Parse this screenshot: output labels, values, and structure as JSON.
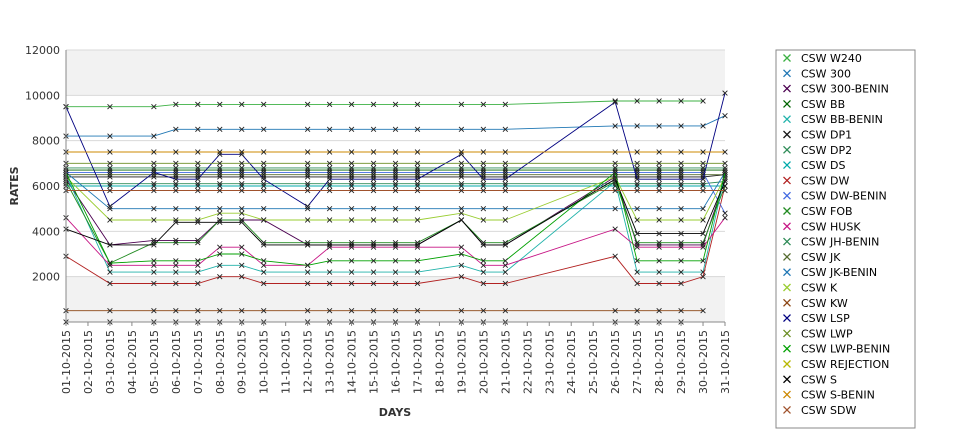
{
  "chart_data": {
    "type": "line",
    "xlabel": "DAYS",
    "ylabel": "RATES",
    "ylim": [
      0,
      12000
    ],
    "yticks": [
      2000,
      4000,
      6000,
      8000,
      10000,
      12000
    ],
    "grid": true,
    "legend_position": "right",
    "categories": [
      "01-10-2015",
      "02-10-2015",
      "03-10-2015",
      "04-10-2015",
      "05-10-2015",
      "06-10-2015",
      "07-10-2015",
      "08-10-2015",
      "09-10-2015",
      "10-10-2015",
      "11-10-2015",
      "12-10-2015",
      "13-10-2015",
      "14-10-2015",
      "15-10-2015",
      "16-10-2015",
      "17-10-2015",
      "18-10-2015",
      "19-10-2015",
      "20-10-2015",
      "21-10-2015",
      "22-10-2015",
      "23-10-2015",
      "24-10-2015",
      "25-10-2015",
      "26-10-2015",
      "27-10-2015",
      "28-10-2015",
      "29-10-2015",
      "30-10-2015",
      "31-10-2015"
    ],
    "series": [
      {
        "name": "CSW  W240",
        "color": "#3cb043",
        "values": [
          9500,
          null,
          9500,
          null,
          9500,
          9600,
          9600,
          9600,
          9600,
          9600,
          null,
          9600,
          9600,
          9600,
          9600,
          9600,
          9600,
          null,
          9600,
          9600,
          9600,
          null,
          null,
          null,
          null,
          9750,
          9750,
          9750,
          9750,
          9750,
          null
        ]
      },
      {
        "name": "CSW 300",
        "color": "#1f77b4",
        "values": [
          8200,
          null,
          8200,
          null,
          8200,
          8500,
          8500,
          8500,
          8500,
          8500,
          null,
          8500,
          8500,
          8500,
          8500,
          8500,
          8500,
          null,
          8500,
          8500,
          8500,
          null,
          null,
          null,
          null,
          8650,
          8650,
          8650,
          8650,
          8650,
          9100
        ]
      },
      {
        "name": "CSW 300-BENIN",
        "color": "#4b0050",
        "values": [
          6300,
          null,
          3400,
          null,
          3600,
          3600,
          3600,
          4500,
          4500,
          4500,
          null,
          3400,
          3400,
          3400,
          3400,
          3400,
          3400,
          null,
          4500,
          3400,
          3400,
          null,
          null,
          null,
          null,
          6400,
          3400,
          3400,
          3400,
          3400,
          6300
        ]
      },
      {
        "name": "CSW BB",
        "color": "#006400",
        "values": [
          6700,
          null,
          6700,
          null,
          6700,
          6700,
          6700,
          6700,
          6700,
          6700,
          null,
          6700,
          6700,
          6700,
          6700,
          6700,
          6700,
          null,
          6700,
          6700,
          6700,
          null,
          null,
          null,
          null,
          6700,
          6700,
          6700,
          6700,
          6700,
          6700
        ]
      },
      {
        "name": "CSW BB-BENIN",
        "color": "#20b2aa",
        "values": [
          6500,
          null,
          2200,
          null,
          2200,
          2200,
          2200,
          2500,
          2500,
          2200,
          null,
          2200,
          2200,
          2200,
          2200,
          2200,
          2200,
          null,
          2500,
          2200,
          2200,
          null,
          null,
          null,
          null,
          6200,
          2200,
          2200,
          2200,
          2200,
          6500
        ]
      },
      {
        "name": "CSW DP1",
        "color": "#1a1a1a",
        "values": [
          6400,
          null,
          6400,
          null,
          6400,
          6400,
          6400,
          6400,
          6400,
          6400,
          null,
          6400,
          6400,
          6400,
          6400,
          6400,
          6400,
          null,
          6400,
          6400,
          6400,
          null,
          null,
          null,
          null,
          6400,
          6400,
          6400,
          6400,
          6400,
          6500
        ]
      },
      {
        "name": "CSW DP2",
        "color": "#2e8b57",
        "values": [
          6100,
          null,
          6100,
          null,
          6100,
          6100,
          6100,
          6100,
          6100,
          6100,
          null,
          6100,
          6100,
          6100,
          6100,
          6100,
          6100,
          null,
          6100,
          6100,
          6100,
          null,
          null,
          null,
          null,
          6100,
          6100,
          6100,
          6100,
          6100,
          6200
        ]
      },
      {
        "name": "CSW DS",
        "color": "#00aaaa",
        "values": [
          6000,
          null,
          6000,
          null,
          6000,
          6000,
          6000,
          6000,
          6000,
          6000,
          null,
          6000,
          6000,
          6000,
          6000,
          6000,
          6000,
          null,
          6000,
          6000,
          6000,
          null,
          null,
          null,
          null,
          6000,
          6000,
          6000,
          6000,
          6000,
          6000
        ]
      },
      {
        "name": "CSW DW",
        "color": "#b22222",
        "values": [
          2900,
          null,
          1700,
          null,
          1700,
          1700,
          1700,
          2000,
          2000,
          1700,
          null,
          1700,
          1700,
          1700,
          1700,
          1700,
          1700,
          null,
          2000,
          1700,
          1700,
          null,
          null,
          null,
          null,
          2900,
          1700,
          1700,
          1700,
          2000,
          6000
        ]
      },
      {
        "name": "CSW DW-BENIN",
        "color": "#4169e1",
        "values": [
          6600,
          null,
          6600,
          null,
          6600,
          6600,
          6600,
          6600,
          6600,
          6600,
          null,
          6600,
          6600,
          6600,
          6600,
          6600,
          6600,
          null,
          6600,
          6600,
          6600,
          null,
          null,
          null,
          null,
          6600,
          6600,
          6600,
          6600,
          6600,
          4800
        ]
      },
      {
        "name": "CSW FOB",
        "color": "#228b22",
        "values": [
          6200,
          null,
          2600,
          null,
          3500,
          3500,
          3500,
          4500,
          4500,
          3500,
          null,
          3500,
          3500,
          3500,
          3500,
          3500,
          3500,
          null,
          4500,
          3500,
          3500,
          null,
          null,
          null,
          null,
          6200,
          3500,
          3500,
          3500,
          3500,
          6000
        ]
      },
      {
        "name": "CSW HUSK",
        "color": "#c71585",
        "values": [
          4600,
          null,
          2500,
          null,
          2500,
          2500,
          2500,
          3300,
          3300,
          2500,
          null,
          2500,
          3300,
          3300,
          3300,
          3300,
          3300,
          null,
          3300,
          2500,
          2500,
          null,
          null,
          null,
          null,
          4100,
          3300,
          3300,
          3300,
          3300,
          4600
        ]
      },
      {
        "name": "CSW JH-BENIN",
        "color": "#2e8b57",
        "values": [
          6800,
          null,
          6800,
          null,
          6800,
          6800,
          6800,
          6800,
          6800,
          6800,
          null,
          6800,
          6800,
          6800,
          6800,
          6800,
          6800,
          null,
          6800,
          6800,
          6800,
          null,
          null,
          null,
          null,
          6800,
          6800,
          6800,
          6800,
          6800,
          6800
        ]
      },
      {
        "name": "CSW JK",
        "color": "#556b2f",
        "values": [
          6500,
          null,
          6500,
          null,
          6500,
          6500,
          6500,
          6500,
          6500,
          6500,
          null,
          6500,
          6500,
          6500,
          6500,
          6500,
          6500,
          null,
          6500,
          6500,
          6500,
          null,
          null,
          null,
          null,
          6500,
          6500,
          6500,
          6500,
          6500,
          6500
        ]
      },
      {
        "name": "CSW JK-BENIN",
        "color": "#1f77b4",
        "values": [
          6600,
          null,
          5000,
          null,
          5000,
          5000,
          5000,
          5000,
          5000,
          5000,
          null,
          5000,
          5000,
          5000,
          5000,
          5000,
          5000,
          null,
          5000,
          5000,
          5000,
          null,
          null,
          null,
          null,
          5000,
          5000,
          5000,
          5000,
          5000,
          6600
        ]
      },
      {
        "name": "CSW K",
        "color": "#9acd32",
        "values": [
          6400,
          null,
          4500,
          null,
          4500,
          4500,
          4500,
          4800,
          4800,
          4500,
          null,
          4500,
          4500,
          4500,
          4500,
          4500,
          4500,
          null,
          4800,
          4500,
          4500,
          null,
          null,
          null,
          null,
          6400,
          4500,
          4500,
          4500,
          4500,
          6400
        ]
      },
      {
        "name": "CSW KW",
        "color": "#8b4513",
        "values": [
          500,
          null,
          500,
          null,
          500,
          500,
          500,
          500,
          500,
          500,
          null,
          500,
          500,
          500,
          500,
          500,
          500,
          null,
          500,
          500,
          500,
          null,
          null,
          null,
          null,
          500,
          500,
          500,
          500,
          500,
          null
        ]
      },
      {
        "name": "CSW LSP",
        "color": "#000080",
        "values": [
          9500,
          null,
          5100,
          null,
          6600,
          6300,
          6300,
          7400,
          7400,
          6300,
          null,
          5100,
          6300,
          6300,
          6300,
          6300,
          6300,
          null,
          7400,
          6300,
          6300,
          null,
          null,
          null,
          null,
          9700,
          6300,
          6300,
          6300,
          6300,
          10100
        ]
      },
      {
        "name": "CSW LWP",
        "color": "#6b8e23",
        "values": [
          7000,
          null,
          7000,
          null,
          7000,
          7000,
          7000,
          7000,
          7000,
          7000,
          null,
          7000,
          7000,
          7000,
          7000,
          7000,
          7000,
          null,
          7000,
          7000,
          7000,
          null,
          null,
          null,
          null,
          7000,
          7000,
          7000,
          7000,
          7000,
          7000
        ]
      },
      {
        "name": "CSW LWP-BENIN",
        "color": "#00a000",
        "values": [
          6600,
          null,
          2600,
          null,
          2700,
          2700,
          2700,
          3000,
          3000,
          2700,
          null,
          2500,
          2700,
          2700,
          2700,
          2700,
          2700,
          null,
          3000,
          2700,
          2700,
          null,
          null,
          null,
          null,
          6600,
          2700,
          2700,
          2700,
          2700,
          6600
        ]
      },
      {
        "name": "CSW REJECTION",
        "color": "#b8b800",
        "values": [
          0,
          null,
          0,
          null,
          0,
          0,
          0,
          0,
          0,
          0,
          null,
          0,
          0,
          0,
          0,
          0,
          0,
          null,
          0,
          0,
          0,
          null,
          null,
          null,
          null,
          0,
          0,
          0,
          0,
          null,
          null
        ]
      },
      {
        "name": "CSW S",
        "color": "#000000",
        "values": [
          4100,
          null,
          3400,
          null,
          3400,
          4400,
          4400,
          4400,
          4400,
          3400,
          null,
          3400,
          3400,
          3400,
          3400,
          3400,
          3400,
          null,
          4500,
          3400,
          3400,
          null,
          null,
          null,
          null,
          6300,
          3900,
          3900,
          3900,
          3900,
          6200
        ]
      },
      {
        "name": "CSW S-BENIN",
        "color": "#cc8800",
        "values": [
          7500,
          null,
          7500,
          null,
          7500,
          7500,
          7500,
          7500,
          7500,
          7500,
          null,
          7500,
          7500,
          7500,
          7500,
          7500,
          7500,
          null,
          7500,
          7500,
          7500,
          null,
          null,
          null,
          null,
          7500,
          7500,
          7500,
          7500,
          7500,
          7500
        ]
      },
      {
        "name": "CSW SDW",
        "color": "#a0522d",
        "values": [
          5800,
          null,
          5800,
          null,
          5800,
          5800,
          5800,
          5800,
          5800,
          5800,
          null,
          5800,
          5800,
          5800,
          5800,
          5800,
          5800,
          null,
          5800,
          5800,
          5800,
          null,
          null,
          null,
          null,
          5800,
          5800,
          5800,
          5800,
          5800,
          5800
        ]
      }
    ]
  }
}
